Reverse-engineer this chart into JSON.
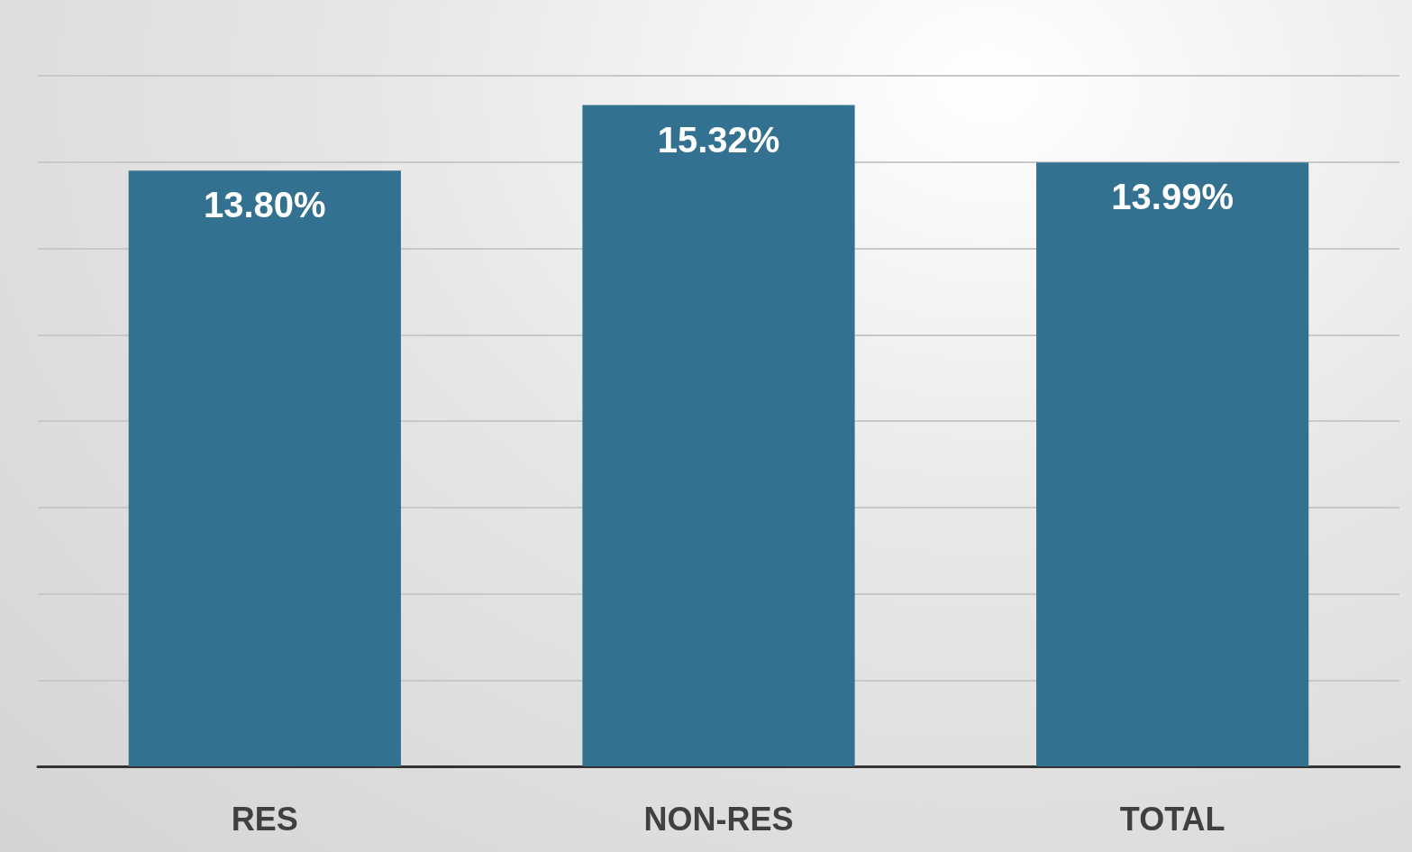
{
  "chart_data": {
    "type": "bar",
    "categories": [
      "RES",
      "NON-RES",
      "TOTAL"
    ],
    "values": [
      13.8,
      15.32,
      13.99
    ],
    "value_labels": [
      "13.80%",
      "15.32%",
      "13.99%"
    ],
    "color": "#337190",
    "ylim": [
      0,
      16
    ],
    "yticks": [
      {
        "value": 0,
        "label": null
      },
      {
        "value": 2,
        "label": null
      },
      {
        "value": 4,
        "label": null
      },
      {
        "value": 6,
        "label": null
      },
      {
        "value": 8,
        "label": null
      },
      {
        "value": 10,
        "label": null
      },
      {
        "value": 12,
        "label": null
      },
      {
        "value": 14,
        "label": null
      },
      {
        "value": 16,
        "label": null
      }
    ],
    "grid": "y"
  }
}
